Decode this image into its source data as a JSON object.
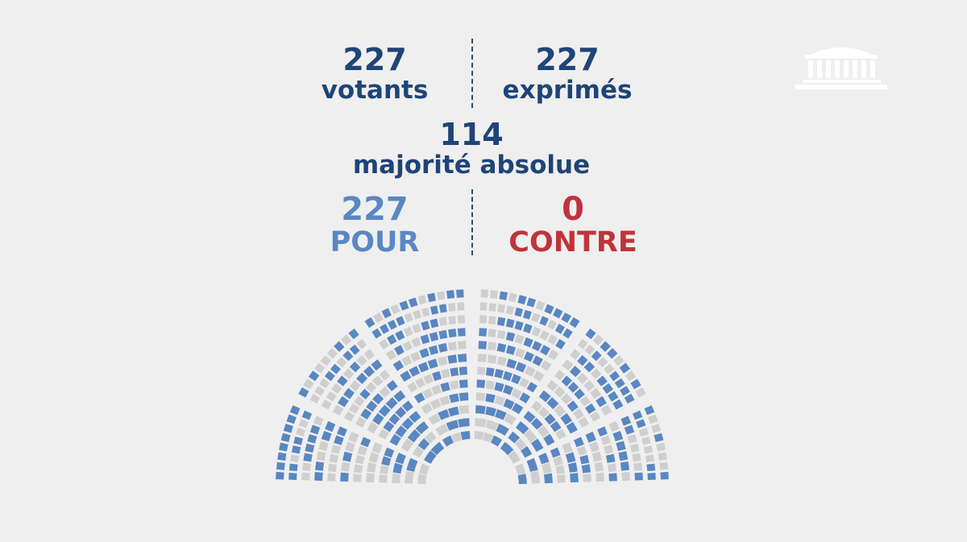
{
  "header": {
    "votants": {
      "value": "227",
      "label": "votants"
    },
    "exprimes": {
      "value": "227",
      "label": "exprimés"
    },
    "majorite": {
      "value": "114",
      "label": "majorité absolue"
    }
  },
  "result": {
    "pour": {
      "value": "227",
      "label": "POUR"
    },
    "contre": {
      "value": "0",
      "label": "CONTRE"
    }
  },
  "colors": {
    "dark_blue": "#1f4477",
    "pour_blue": "#5a87c2",
    "contre_red": "#bf343b",
    "empty_seat": "#cfcfcf",
    "background": "#efefef"
  },
  "hemicycle": {
    "seats_pour": 227,
    "seats_contre": 0
  },
  "logo": {
    "icon": "assemblee-nationale-building-icon"
  }
}
